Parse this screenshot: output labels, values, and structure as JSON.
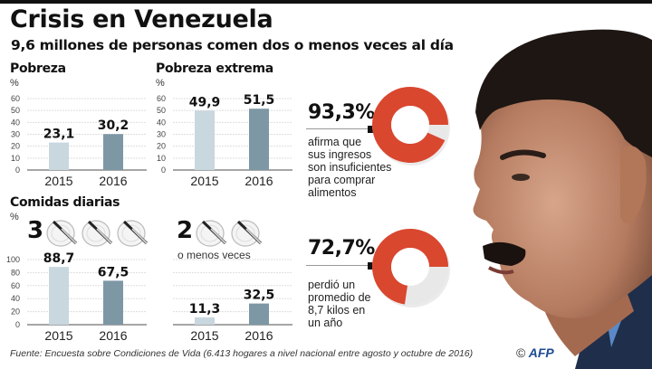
{
  "header": {
    "title": "Crisis en Venezuela",
    "subtitle": "9,6 millones de personas comen dos o menos veces al día"
  },
  "colors": {
    "bar_2015": "#c9d7df",
    "bar_2016": "#7d97a5",
    "donut_red": "#d9472f",
    "donut_gray": "#e8e8e8",
    "grid": "#dddddd",
    "axis": "#888888"
  },
  "chart_data": [
    {
      "type": "bar",
      "title": "Pobreza",
      "ylabel": "%",
      "categories": [
        "2015",
        "2016"
      ],
      "values": [
        23.1,
        30.2
      ],
      "value_labels": [
        "23,1",
        "30,2"
      ],
      "ylim": [
        0,
        60
      ],
      "yticks": [
        "0",
        "10",
        "20",
        "30",
        "40",
        "50",
        "60"
      ],
      "grid": true
    },
    {
      "type": "bar",
      "title": "Pobreza extrema",
      "ylabel": "%",
      "categories": [
        "2015",
        "2016"
      ],
      "values": [
        49.9,
        51.5
      ],
      "value_labels": [
        "49,9",
        "51,5"
      ],
      "ylim": [
        0,
        60
      ],
      "yticks": [
        "0",
        "10",
        "20",
        "30",
        "40",
        "50",
        "60"
      ],
      "grid": true
    },
    {
      "type": "bar",
      "title": "Comidas diarias",
      "group_label": "3",
      "ylabel": "%",
      "categories": [
        "2015",
        "2016"
      ],
      "values": [
        88.7,
        67.5
      ],
      "value_labels": [
        "88,7",
        "67,5"
      ],
      "ylim": [
        0,
        100
      ],
      "yticks": [
        "0",
        "20",
        "40",
        "60",
        "80",
        "100"
      ],
      "grid": true
    },
    {
      "type": "bar",
      "group_label": "2",
      "caption": "o menos veces",
      "categories": [
        "2015",
        "2016"
      ],
      "values": [
        11.3,
        32.5
      ],
      "value_labels": [
        "11,3",
        "32,5"
      ],
      "ylim": [
        0,
        100
      ],
      "yticks": [],
      "grid": true
    },
    {
      "type": "pie",
      "donut": true,
      "value": 93.3,
      "value_label": "93,3%",
      "description": "afirma que sus ingresos son insuficientes para comprar alimentos"
    },
    {
      "type": "pie",
      "donut": true,
      "value": 72.7,
      "value_label": "72,7%",
      "description": "perdió un promedio de 8,7 kilos en un año"
    }
  ],
  "comidas": {
    "three_label": "3",
    "two_label": "2",
    "two_caption": "o menos veces",
    "pct_label": "%"
  },
  "donuts": [
    {
      "label": "93,3%",
      "lines": [
        "afirma que",
        "sus ingresos",
        "son insuficientes",
        "para  comprar",
        "alimentos"
      ]
    },
    {
      "label": "72,7%",
      "lines": [
        "perdió un",
        "promedio de",
        "8,7 kilos en",
        "un año"
      ]
    }
  ],
  "footer": {
    "source": "Fuente: Encuesta sobre Condiciones de Vida (6.413 hogares a nivel nacional entre agosto y octubre de 2016)",
    "copyright": "©",
    "agency": "AFP"
  },
  "images": {
    "portrait": "portrait of Nicolás Maduro in profile"
  }
}
